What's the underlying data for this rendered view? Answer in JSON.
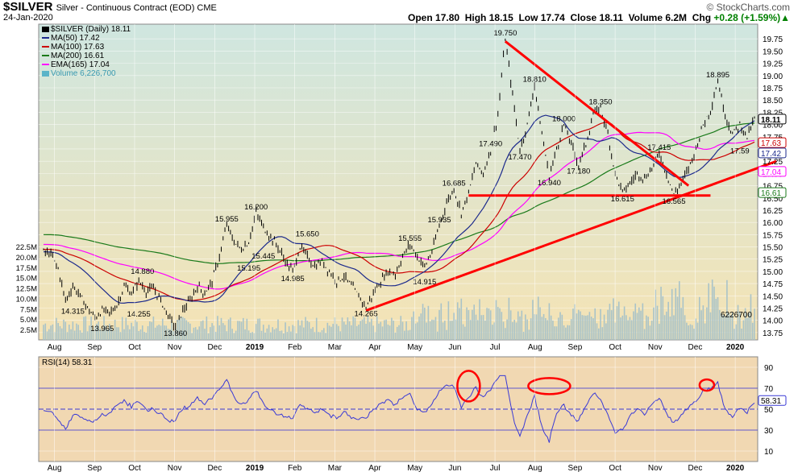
{
  "header": {
    "title": "$SILVER",
    "subtitle": "Silver - Continuous Contract (EOD) CME",
    "date": "24-Jan-2020",
    "ohlc": [
      {
        "label": "Open",
        "value": "17.80"
      },
      {
        "label": "High",
        "value": "18.15"
      },
      {
        "label": "Low",
        "value": "17.74"
      },
      {
        "label": "Close",
        "value": "18.11"
      },
      {
        "label": "Volume",
        "value": "6.2M"
      }
    ],
    "change_label": "Chg",
    "change_value": "+0.28 (+1.59%)",
    "change_arrow": "▲",
    "copyright": "© StockCharts.com"
  },
  "legend": [
    {
      "text": "$SILVER (Daily) 18.11",
      "color": "#000000",
      "icon": "candle-icon"
    },
    {
      "text": "MA(50) 17.42",
      "color": "#1c2a8c"
    },
    {
      "text": "MA(100) 17.63",
      "color": "#cc0000"
    },
    {
      "text": "MA(200) 16.61",
      "color": "#1a7a1a"
    },
    {
      "text": "EMA(165) 17.04",
      "color": "#ff00ff"
    },
    {
      "text": "Volume 6,226,700",
      "color": "#5ab4c8"
    }
  ],
  "colors": {
    "price_bg_top": "#cfe6e0",
    "price_bg_bottom": "#f5e3b4",
    "rsi_bg": "#f1d8b2",
    "price": "#000000",
    "ma50": "#1c2a8c",
    "ma100": "#cc0000",
    "ma200": "#1a7a1a",
    "ema165": "#ff00ff",
    "volume": "#a9c3c8",
    "rsi": "#3a3ad6",
    "annotation": "#ff0000"
  },
  "chart_data": [
    {
      "type": "line",
      "title": "$SILVER (Daily)",
      "x_axis_ticks": [
        "Aug",
        "Sep",
        "Oct",
        "Nov",
        "Dec",
        "2019",
        "Feb",
        "Mar",
        "Apr",
        "May",
        "Jun",
        "Jul",
        "Aug",
        "Sep",
        "Oct",
        "Nov",
        "Dec",
        "2020"
      ],
      "y_ticks": [
        "19.75",
        "19.50",
        "19.25",
        "19.00",
        "18.75",
        "18.50",
        "18.25",
        "18.00",
        "17.75",
        "17.50",
        "17.25",
        "17.00",
        "16.75",
        "16.50",
        "16.25",
        "16.00",
        "15.75",
        "15.50",
        "15.25",
        "15.00",
        "14.75",
        "14.50",
        "14.25",
        "14.00",
        "13.75"
      ],
      "ylim": [
        13.6,
        20.05
      ],
      "price_path": [
        [
          0,
          15.4
        ],
        [
          2,
          15.35
        ],
        [
          4,
          15.05
        ],
        [
          6,
          14.4
        ],
        [
          8,
          14.7
        ],
        [
          10,
          14.5
        ],
        [
          12,
          14.25
        ],
        [
          14,
          14.05
        ],
        [
          16,
          14.2
        ],
        [
          18,
          14.15
        ],
        [
          20,
          14.3
        ],
        [
          22,
          14.7
        ],
        [
          24,
          14.55
        ],
        [
          26,
          14.8
        ],
        [
          28,
          14.6
        ],
        [
          30,
          14.65
        ],
        [
          32,
          14.4
        ],
        [
          34,
          14.1
        ],
        [
          36,
          13.86
        ],
        [
          38,
          14.2
        ],
        [
          40,
          14.4
        ],
        [
          42,
          14.7
        ],
        [
          44,
          14.55
        ],
        [
          46,
          14.8
        ],
        [
          48,
          15.3
        ],
        [
          50,
          15.95
        ],
        [
          52,
          15.6
        ],
        [
          54,
          15.45
        ],
        [
          56,
          15.6
        ],
        [
          58,
          16.2
        ],
        [
          60,
          15.9
        ],
        [
          62,
          15.7
        ],
        [
          64,
          15.5
        ],
        [
          66,
          15.2
        ],
        [
          68,
          15.0
        ],
        [
          70,
          15.5
        ],
        [
          72,
          15.3
        ],
        [
          74,
          15.1
        ],
        [
          76,
          15.2
        ],
        [
          78,
          15.0
        ],
        [
          80,
          14.8
        ],
        [
          82,
          14.9
        ],
        [
          84,
          14.7
        ],
        [
          86,
          14.5
        ],
        [
          88,
          14.265
        ],
        [
          90,
          14.55
        ],
        [
          92,
          14.8
        ],
        [
          94,
          15.0
        ],
        [
          96,
          14.95
        ],
        [
          98,
          15.3
        ],
        [
          100,
          15.555
        ],
        [
          102,
          15.3
        ],
        [
          104,
          15.1
        ],
        [
          106,
          15.4
        ],
        [
          108,
          15.935
        ],
        [
          110,
          16.4
        ],
        [
          112,
          16.685
        ],
        [
          114,
          16.2
        ],
        [
          116,
          16.6
        ],
        [
          118,
          17.2
        ],
        [
          120,
          17.0
        ],
        [
          122,
          17.49
        ],
        [
          124,
          18.2
        ],
        [
          126,
          19.75
        ],
        [
          128,
          18.6
        ],
        [
          130,
          17.47
        ],
        [
          132,
          18.0
        ],
        [
          134,
          18.81
        ],
        [
          136,
          17.8
        ],
        [
          138,
          16.94
        ],
        [
          140,
          17.5
        ],
        [
          142,
          18.0
        ],
        [
          144,
          17.6
        ],
        [
          146,
          17.18
        ],
        [
          148,
          17.6
        ],
        [
          150,
          18.2
        ],
        [
          152,
          18.35
        ],
        [
          154,
          17.8
        ],
        [
          156,
          17.0
        ],
        [
          158,
          16.615
        ],
        [
          160,
          16.8
        ],
        [
          162,
          17.0
        ],
        [
          164,
          16.9
        ],
        [
          166,
          17.1
        ],
        [
          168,
          17.415
        ],
        [
          170,
          17.0
        ],
        [
          172,
          16.565
        ],
        [
          174,
          16.8
        ],
        [
          176,
          17.1
        ],
        [
          178,
          17.5
        ],
        [
          180,
          18.0
        ],
        [
          182,
          18.3
        ],
        [
          184,
          18.895
        ],
        [
          186,
          18.2
        ],
        [
          188,
          17.8
        ],
        [
          190,
          18.0
        ],
        [
          192,
          17.75
        ],
        [
          194,
          18.11
        ]
      ],
      "series": [
        {
          "name": "MA(50)",
          "last": 17.42
        },
        {
          "name": "MA(100)",
          "last": 17.63
        },
        {
          "name": "MA(200)",
          "last": 16.61
        },
        {
          "name": "EMA(165)",
          "last": 17.04
        }
      ],
      "annotations": [
        {
          "text": "14.315",
          "x": 8,
          "y": 14.315
        },
        {
          "text": "13.965",
          "x": 16,
          "y": 13.965
        },
        {
          "text": "14.255",
          "x": 26,
          "y": 14.255
        },
        {
          "text": "14.880",
          "x": 27,
          "y": 14.88
        },
        {
          "text": "13.860",
          "x": 36,
          "y": 13.86
        },
        {
          "text": "15.955",
          "x": 50,
          "y": 15.955
        },
        {
          "text": "16.200",
          "x": 58,
          "y": 16.2
        },
        {
          "text": "15.445",
          "x": 60,
          "y": 15.445
        },
        {
          "text": "15.195",
          "x": 56,
          "y": 15.195
        },
        {
          "text": "15.650",
          "x": 72,
          "y": 15.65
        },
        {
          "text": "14.985",
          "x": 68,
          "y": 14.985
        },
        {
          "text": "14.265",
          "x": 88,
          "y": 14.265
        },
        {
          "text": "15.555",
          "x": 100,
          "y": 15.555
        },
        {
          "text": "14.915",
          "x": 104,
          "y": 14.915
        },
        {
          "text": "15.935",
          "x": 108,
          "y": 15.935
        },
        {
          "text": "16.685",
          "x": 112,
          "y": 16.685
        },
        {
          "text": "17.490",
          "x": 122,
          "y": 17.49
        },
        {
          "text": "19.750",
          "x": 126,
          "y": 19.75
        },
        {
          "text": "18.810",
          "x": 134,
          "y": 18.81
        },
        {
          "text": "17.470",
          "x": 130,
          "y": 17.47
        },
        {
          "text": "18.000",
          "x": 142,
          "y": 18.0
        },
        {
          "text": "16.940",
          "x": 138,
          "y": 16.94
        },
        {
          "text": "17.180",
          "x": 146,
          "y": 17.18
        },
        {
          "text": "18.350",
          "x": 152,
          "y": 18.35
        },
        {
          "text": "17.415",
          "x": 168,
          "y": 17.415
        },
        {
          "text": "16.615",
          "x": 158,
          "y": 16.615
        },
        {
          "text": "16.565",
          "x": 172,
          "y": 16.565
        },
        {
          "text": "18.895",
          "x": 184,
          "y": 18.895
        },
        {
          "text": "17.59",
          "x": 190,
          "y": 17.59
        }
      ],
      "right_badges": [
        {
          "text": "18.11",
          "color": "#000000"
        },
        {
          "text": "17.63",
          "color": "#cc0000"
        },
        {
          "text": "17.42",
          "color": "#1c2a8c"
        },
        {
          "text": "17.04",
          "color": "#ff00ff"
        },
        {
          "text": "16.61",
          "color": "#1a7a1a"
        }
      ],
      "volume_ticks": [
        "22.5M",
        "20.0M",
        "17.5M",
        "15.0M",
        "12.5M",
        "10.0M",
        "7.5M",
        "5.0M",
        "2.5M"
      ],
      "volume_last": "6226700"
    },
    {
      "type": "line",
      "title": "RSI(14) 58.31",
      "y_ticks": [
        "90",
        "70",
        "50",
        "30",
        "10"
      ],
      "ylim": [
        0,
        100
      ],
      "last": "58.31",
      "x_axis_ticks": [
        "Aug",
        "Sep",
        "Oct",
        "Nov",
        "Dec",
        "2019",
        "Feb",
        "Mar",
        "Apr",
        "May",
        "Jun",
        "Jul",
        "Aug",
        "Sep",
        "Oct",
        "Nov",
        "Dec",
        "2020"
      ]
    }
  ]
}
